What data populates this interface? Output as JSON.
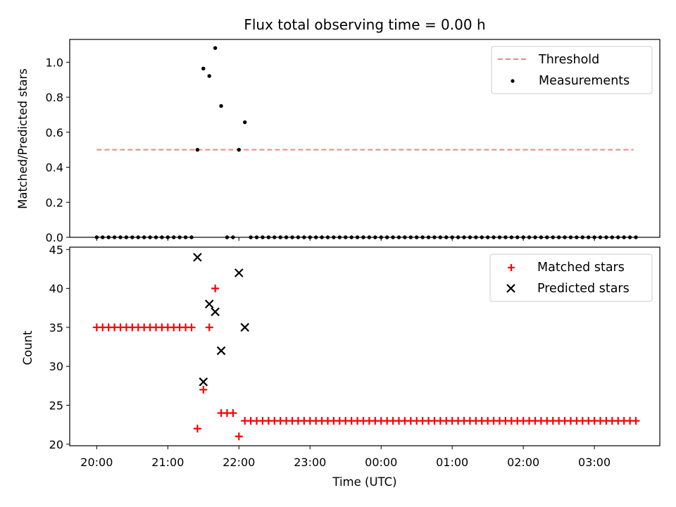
{
  "chart_data": {
    "type": "scatter",
    "title": "Flux total observing time = 0.00 h",
    "xlabel": "Time (UTC)",
    "x_ticks": [
      "20:00",
      "21:00",
      "22:00",
      "23:00",
      "00:00",
      "01:00",
      "02:00",
      "03:00"
    ],
    "x_range_hours": [
      19.62,
      27.92
    ],
    "panels": [
      {
        "id": "ratio",
        "ylabel": "Matched/Predicted stars",
        "ylim": [
          0,
          1.13
        ],
        "y_ticks": [
          "0.0",
          "0.2",
          "0.4",
          "0.6",
          "0.8",
          "1.0"
        ],
        "legend": {
          "position": "top-right",
          "entries": [
            "Threshold",
            "Measurements"
          ]
        },
        "threshold": {
          "name": "Threshold",
          "value": 0.5,
          "x_from": "20:00",
          "x_to": "03:33",
          "color": "#ff7f7f"
        },
        "measurements": {
          "name": "Measurements",
          "color": "#000000",
          "points": [
            [
              "20:00",
              0
            ],
            [
              "20:05",
              0
            ],
            [
              "20:10",
              0
            ],
            [
              "20:15",
              0
            ],
            [
              "20:20",
              0
            ],
            [
              "20:25",
              0
            ],
            [
              "20:30",
              0
            ],
            [
              "20:35",
              0
            ],
            [
              "20:40",
              0
            ],
            [
              "20:45",
              0
            ],
            [
              "20:50",
              0
            ],
            [
              "20:55",
              0
            ],
            [
              "21:00",
              0
            ],
            [
              "21:05",
              0
            ],
            [
              "21:10",
              0
            ],
            [
              "21:15",
              0
            ],
            [
              "21:20",
              0
            ],
            [
              "21:25",
              0.5
            ],
            [
              "21:30",
              0.964
            ],
            [
              "21:35",
              0.921
            ],
            [
              "21:40",
              1.081
            ],
            [
              "21:45",
              0.75
            ],
            [
              "21:50",
              0
            ],
            [
              "21:55",
              0
            ],
            [
              "22:00",
              0.5
            ],
            [
              "22:05",
              0.657
            ],
            [
              "22:10",
              0
            ],
            [
              "22:15",
              0
            ],
            [
              "22:20",
              0
            ],
            [
              "22:25",
              0
            ],
            [
              "22:30",
              0
            ],
            [
              "22:35",
              0
            ],
            [
              "22:40",
              0
            ],
            [
              "22:45",
              0
            ],
            [
              "22:50",
              0
            ],
            [
              "22:55",
              0
            ],
            [
              "23:00",
              0
            ],
            [
              "23:05",
              0
            ],
            [
              "23:10",
              0
            ],
            [
              "23:15",
              0
            ],
            [
              "23:20",
              0
            ],
            [
              "23:25",
              0
            ],
            [
              "23:30",
              0
            ],
            [
              "23:35",
              0
            ],
            [
              "23:40",
              0
            ],
            [
              "23:45",
              0
            ],
            [
              "23:50",
              0
            ],
            [
              "23:55",
              0
            ],
            [
              "00:00",
              0
            ],
            [
              "00:05",
              0
            ],
            [
              "00:10",
              0
            ],
            [
              "00:15",
              0
            ],
            [
              "00:20",
              0
            ],
            [
              "00:25",
              0
            ],
            [
              "00:30",
              0
            ],
            [
              "00:35",
              0
            ],
            [
              "00:40",
              0
            ],
            [
              "00:45",
              0
            ],
            [
              "00:50",
              0
            ],
            [
              "00:55",
              0
            ],
            [
              "01:00",
              0
            ],
            [
              "01:05",
              0
            ],
            [
              "01:10",
              0
            ],
            [
              "01:15",
              0
            ],
            [
              "01:20",
              0
            ],
            [
              "01:25",
              0
            ],
            [
              "01:30",
              0
            ],
            [
              "01:35",
              0
            ],
            [
              "01:40",
              0
            ],
            [
              "01:45",
              0
            ],
            [
              "01:50",
              0
            ],
            [
              "01:55",
              0
            ],
            [
              "02:00",
              0
            ],
            [
              "02:05",
              0
            ],
            [
              "02:10",
              0
            ],
            [
              "02:15",
              0
            ],
            [
              "02:20",
              0
            ],
            [
              "02:25",
              0
            ],
            [
              "02:30",
              0
            ],
            [
              "02:35",
              0
            ],
            [
              "02:40",
              0
            ],
            [
              "02:45",
              0
            ],
            [
              "02:50",
              0
            ],
            [
              "02:55",
              0
            ],
            [
              "03:00",
              0
            ],
            [
              "03:05",
              0
            ],
            [
              "03:10",
              0
            ],
            [
              "03:15",
              0
            ],
            [
              "03:20",
              0
            ],
            [
              "03:25",
              0
            ],
            [
              "03:30",
              0
            ],
            [
              "03:35",
              0
            ]
          ]
        }
      },
      {
        "id": "count",
        "ylabel": "Count",
        "ylim": [
          19.8,
          45.3
        ],
        "y_ticks": [
          "20",
          "25",
          "30",
          "35",
          "40",
          "45"
        ],
        "legend": {
          "position": "top-right",
          "entries": [
            "Matched stars",
            "Predicted stars"
          ]
        },
        "matched": {
          "name": "Matched stars",
          "color": "#ff0000",
          "points": [
            [
              "20:00",
              35
            ],
            [
              "20:05",
              35
            ],
            [
              "20:10",
              35
            ],
            [
              "20:15",
              35
            ],
            [
              "20:20",
              35
            ],
            [
              "20:25",
              35
            ],
            [
              "20:30",
              35
            ],
            [
              "20:35",
              35
            ],
            [
              "20:40",
              35
            ],
            [
              "20:45",
              35
            ],
            [
              "20:50",
              35
            ],
            [
              "20:55",
              35
            ],
            [
              "21:00",
              35
            ],
            [
              "21:05",
              35
            ],
            [
              "21:10",
              35
            ],
            [
              "21:15",
              35
            ],
            [
              "21:20",
              35
            ],
            [
              "21:25",
              22
            ],
            [
              "21:30",
              27
            ],
            [
              "21:35",
              35
            ],
            [
              "21:40",
              40
            ],
            [
              "21:45",
              24
            ],
            [
              "21:50",
              24
            ],
            [
              "21:55",
              24
            ],
            [
              "22:00",
              21
            ],
            [
              "22:05",
              23
            ],
            [
              "22:10",
              23
            ],
            [
              "22:15",
              23
            ],
            [
              "22:20",
              23
            ],
            [
              "22:25",
              23
            ],
            [
              "22:30",
              23
            ],
            [
              "22:35",
              23
            ],
            [
              "22:40",
              23
            ],
            [
              "22:45",
              23
            ],
            [
              "22:50",
              23
            ],
            [
              "22:55",
              23
            ],
            [
              "23:00",
              23
            ],
            [
              "23:05",
              23
            ],
            [
              "23:10",
              23
            ],
            [
              "23:15",
              23
            ],
            [
              "23:20",
              23
            ],
            [
              "23:25",
              23
            ],
            [
              "23:30",
              23
            ],
            [
              "23:35",
              23
            ],
            [
              "23:40",
              23
            ],
            [
              "23:45",
              23
            ],
            [
              "23:50",
              23
            ],
            [
              "23:55",
              23
            ],
            [
              "00:00",
              23
            ],
            [
              "00:05",
              23
            ],
            [
              "00:10",
              23
            ],
            [
              "00:15",
              23
            ],
            [
              "00:20",
              23
            ],
            [
              "00:25",
              23
            ],
            [
              "00:30",
              23
            ],
            [
              "00:35",
              23
            ],
            [
              "00:40",
              23
            ],
            [
              "00:45",
              23
            ],
            [
              "00:50",
              23
            ],
            [
              "00:55",
              23
            ],
            [
              "01:00",
              23
            ],
            [
              "01:05",
              23
            ],
            [
              "01:10",
              23
            ],
            [
              "01:15",
              23
            ],
            [
              "01:20",
              23
            ],
            [
              "01:25",
              23
            ],
            [
              "01:30",
              23
            ],
            [
              "01:35",
              23
            ],
            [
              "01:40",
              23
            ],
            [
              "01:45",
              23
            ],
            [
              "01:50",
              23
            ],
            [
              "01:55",
              23
            ],
            [
              "02:00",
              23
            ],
            [
              "02:05",
              23
            ],
            [
              "02:10",
              23
            ],
            [
              "02:15",
              23
            ],
            [
              "02:20",
              23
            ],
            [
              "02:25",
              23
            ],
            [
              "02:30",
              23
            ],
            [
              "02:35",
              23
            ],
            [
              "02:40",
              23
            ],
            [
              "02:45",
              23
            ],
            [
              "02:50",
              23
            ],
            [
              "02:55",
              23
            ],
            [
              "03:00",
              23
            ],
            [
              "03:05",
              23
            ],
            [
              "03:10",
              23
            ],
            [
              "03:15",
              23
            ],
            [
              "03:20",
              23
            ],
            [
              "03:25",
              23
            ],
            [
              "03:30",
              23
            ],
            [
              "03:35",
              23
            ]
          ]
        },
        "predicted": {
          "name": "Predicted stars",
          "color": "#000000",
          "points": [
            [
              "21:25",
              44
            ],
            [
              "21:30",
              28
            ],
            [
              "21:35",
              38
            ],
            [
              "21:40",
              37
            ],
            [
              "21:45",
              32
            ],
            [
              "22:00",
              42
            ],
            [
              "22:05",
              35
            ]
          ]
        }
      }
    ]
  }
}
